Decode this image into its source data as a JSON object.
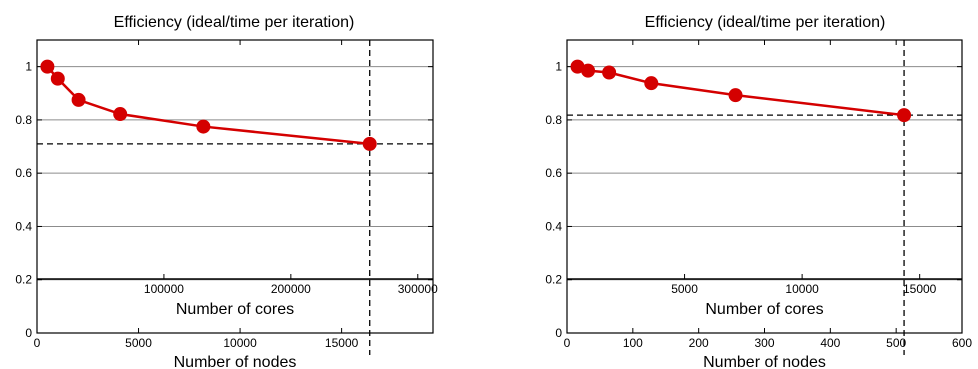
{
  "chart_data": [
    {
      "type": "line",
      "title": "Efficiency (ideal/time per iteration)",
      "xlabel": "Number of nodes",
      "xlabel_secondary": "Number of cores",
      "ylabel": "",
      "xlim": [
        0,
        19500
      ],
      "ylim": [
        0,
        1.1
      ],
      "x_ticks": [
        0,
        5000,
        10000,
        15000
      ],
      "x_tick_labels": [
        "0",
        "5000",
        "10000",
        "15000"
      ],
      "y_ticks": [
        0,
        0.2,
        0.4,
        0.6,
        0.8,
        1
      ],
      "y_tick_labels": [
        "0",
        "0.2",
        "0.4",
        "0.6",
        "0.8",
        "1"
      ],
      "secondary_x_ticks": [
        100000,
        200000,
        300000
      ],
      "secondary_x_tick_labels": [
        "100000",
        "200000",
        "300000"
      ],
      "secondary_x_per_primary": 16,
      "grid": "horizontal",
      "series": [
        {
          "x": [
            512,
            1024,
            2048,
            4096,
            8192,
            16384
          ],
          "y": [
            1.0,
            0.955,
            0.875,
            0.822,
            0.775,
            0.71
          ]
        }
      ],
      "reference_lines": {
        "y": 0.71,
        "x": 16384
      }
    },
    {
      "type": "line",
      "title": "Efficiency (ideal/time per iteration)",
      "xlabel": "Number of nodes",
      "xlabel_secondary": "Number of cores",
      "ylabel": "",
      "xlim": [
        0,
        600
      ],
      "ylim": [
        0,
        1.1
      ],
      "x_ticks": [
        0,
        100,
        200,
        300,
        400,
        500,
        600
      ],
      "x_tick_labels": [
        "0",
        "100",
        "200",
        "300",
        "400",
        "500",
        "600"
      ],
      "y_ticks": [
        0,
        0.2,
        0.4,
        0.6,
        0.8,
        1
      ],
      "y_tick_labels": [
        "0",
        "0.2",
        "0.4",
        "0.6",
        "0.8",
        "1"
      ],
      "secondary_x_ticks": [
        5000,
        10000,
        15000
      ],
      "secondary_x_tick_labels": [
        "5000",
        "10000",
        "15000"
      ],
      "secondary_x_per_primary": 28,
      "grid": "horizontal",
      "series": [
        {
          "x": [
            16,
            32,
            64,
            128,
            256,
            512
          ],
          "y": [
            1.0,
            0.985,
            0.978,
            0.938,
            0.893,
            0.818
          ]
        }
      ],
      "reference_lines": {
        "y": 0.818,
        "x": 512
      }
    }
  ],
  "colors": {
    "series": "#d40000",
    "axis": "#000000",
    "grid": "#8c8c8c",
    "reference": "#000000"
  }
}
